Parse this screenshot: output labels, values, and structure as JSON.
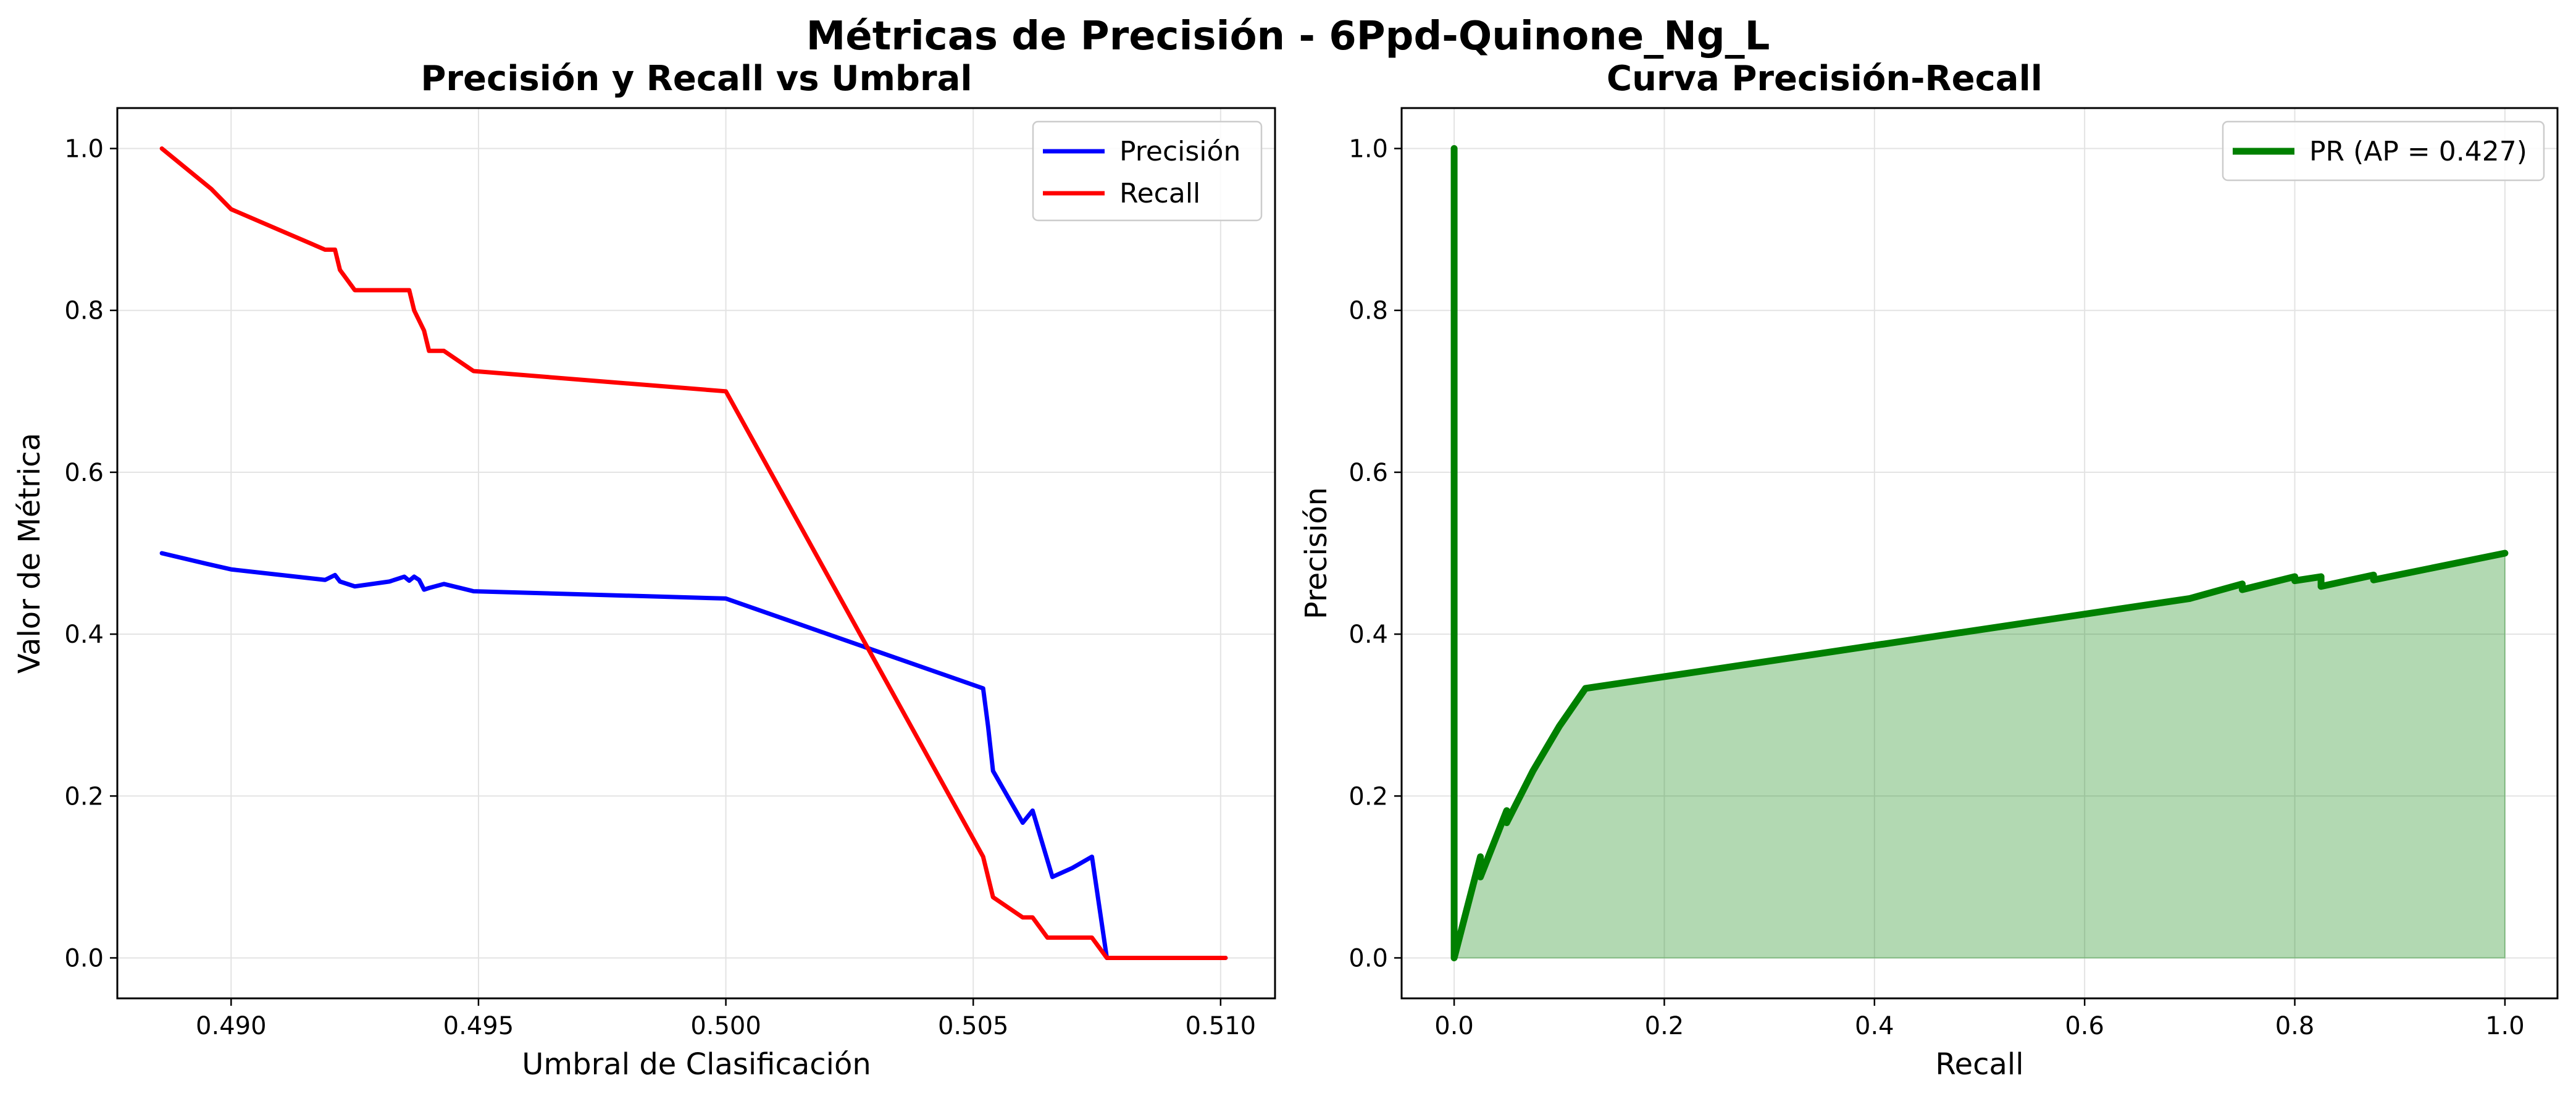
{
  "figure": {
    "title": "Métricas de Precisión - 6Ppd-Quinone_Ng_L"
  },
  "chart_data": [
    {
      "type": "line",
      "title": "Precisión y Recall vs Umbral",
      "xlabel": "Umbral de Clasificación",
      "ylabel": "Valor de Métrica",
      "xlim": [
        0.4877,
        0.5111
      ],
      "ylim": [
        -0.05,
        1.05
      ],
      "xticks": [
        0.49,
        0.495,
        0.5,
        0.505,
        0.51
      ],
      "xtick_labels": [
        "0.490",
        "0.495",
        "0.500",
        "0.505",
        "0.510"
      ],
      "yticks": [
        0.0,
        0.2,
        0.4,
        0.6,
        0.8,
        1.0
      ],
      "ytick_labels": [
        "0.0",
        "0.2",
        "0.4",
        "0.6",
        "0.8",
        "1.0"
      ],
      "grid": true,
      "legend_position": "upper right",
      "series": [
        {
          "name": "Precisión",
          "color": "#0000ff",
          "x": [
            0.4886,
            0.4895,
            0.49,
            0.4919,
            0.4921,
            0.4922,
            0.4925,
            0.4932,
            0.4935,
            0.4936,
            0.4937,
            0.4938,
            0.4939,
            0.494,
            0.4943,
            0.4949,
            0.5,
            0.5052,
            0.5053,
            0.5054,
            0.506,
            0.5062,
            0.5066,
            0.507,
            0.5074,
            0.5077,
            0.5101
          ],
          "y": [
            0.5,
            0.487,
            0.48,
            0.467,
            0.473,
            0.465,
            0.459,
            0.465,
            0.471,
            0.466,
            0.471,
            0.467,
            0.455,
            0.457,
            0.462,
            0.453,
            0.444,
            0.333,
            0.286,
            0.231,
            0.167,
            0.182,
            0.1,
            0.111,
            0.125,
            0.0,
            0.0
          ]
        },
        {
          "name": "Recall",
          "color": "#ff0000",
          "x": [
            0.4886,
            0.4896,
            0.49,
            0.4919,
            0.4921,
            0.4922,
            0.4925,
            0.4936,
            0.4937,
            0.4939,
            0.494,
            0.4943,
            0.4949,
            0.5,
            0.5052,
            0.5053,
            0.5054,
            0.506,
            0.5062,
            0.5065,
            0.5074,
            0.5077,
            0.5101
          ],
          "y": [
            1.0,
            0.95,
            0.925,
            0.875,
            0.875,
            0.85,
            0.825,
            0.825,
            0.8,
            0.775,
            0.75,
            0.75,
            0.725,
            0.7,
            0.125,
            0.1,
            0.075,
            0.05,
            0.05,
            0.025,
            0.025,
            0.0,
            0.0
          ]
        }
      ]
    },
    {
      "type": "area",
      "title": "Curva Precisión-Recall",
      "xlabel": "Recall",
      "ylabel": "Precisión",
      "xlim": [
        -0.05,
        1.05
      ],
      "ylim": [
        -0.05,
        1.05
      ],
      "xticks": [
        0.0,
        0.2,
        0.4,
        0.6,
        0.8,
        1.0
      ],
      "xtick_labels": [
        "0.0",
        "0.2",
        "0.4",
        "0.6",
        "0.8",
        "1.0"
      ],
      "yticks": [
        0.0,
        0.2,
        0.4,
        0.6,
        0.8,
        1.0
      ],
      "ytick_labels": [
        "0.0",
        "0.2",
        "0.4",
        "0.6",
        "0.8",
        "1.0"
      ],
      "grid": true,
      "legend_position": "upper right",
      "fill_color": "#008000",
      "series": [
        {
          "name": "PR (AP = 0.427)",
          "color": "#008000",
          "x": [
            0.0,
            0.0,
            0.025,
            0.025,
            0.05,
            0.05,
            0.075,
            0.1,
            0.125,
            0.7,
            0.75,
            0.75,
            0.8,
            0.8,
            0.825,
            0.825,
            0.875,
            0.875,
            1.0
          ],
          "y": [
            1.0,
            0.0,
            0.125,
            0.1,
            0.182,
            0.167,
            0.231,
            0.286,
            0.333,
            0.444,
            0.462,
            0.455,
            0.471,
            0.466,
            0.471,
            0.459,
            0.473,
            0.467,
            0.5
          ]
        }
      ]
    }
  ]
}
